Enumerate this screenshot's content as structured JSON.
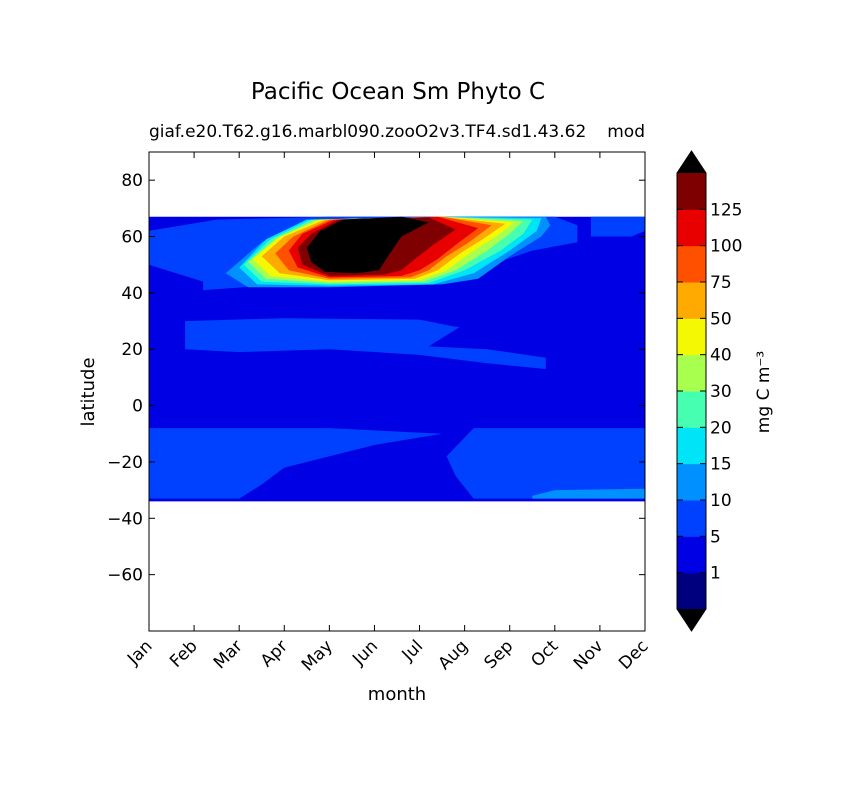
{
  "chart_data": {
    "type": "heatmap",
    "title": "Pacific Ocean Sm Phyto C",
    "subtitle_left": "giaf.e20.T62.g16.marbl090.zooO2v3.TF4.sd1.43.62",
    "subtitle_right": "mod",
    "xlabel": "month",
    "ylabel": "latitude",
    "x_ticks": [
      "Jan",
      "Feb",
      "Mar",
      "Apr",
      "May",
      "Jun",
      "Jul",
      "Aug",
      "Sep",
      "Oct",
      "Nov",
      "Dec"
    ],
    "y_ticks": [
      80,
      60,
      40,
      20,
      0,
      -20,
      -40,
      -60
    ],
    "y_tick_labels": [
      "80",
      "60",
      "40",
      "20",
      "0",
      "−20",
      "−40",
      "−60"
    ],
    "ylim": [
      -80,
      90
    ],
    "data_lat_range": [
      -34,
      67
    ],
    "colorbar": {
      "label": "mg C m⁻³",
      "tick_labels": [
        "1",
        "5",
        "10",
        "15",
        "20",
        "30",
        "40",
        "50",
        "75",
        "100",
        "125"
      ],
      "levels": [
        1,
        5,
        10,
        15,
        20,
        30,
        40,
        50,
        75,
        100,
        125
      ],
      "colors": [
        "#00007f",
        "#0000e5",
        "#0040ff",
        "#0090ff",
        "#00e4f8",
        "#46ffb0",
        "#a8ff4e",
        "#f4f802",
        "#ffaa00",
        "#ff5000",
        "#e80000",
        "#7f0000"
      ],
      "extend_low_color": "#000000",
      "extend_high_color": "#000000"
    },
    "regions": [
      {
        "desc": "background",
        "value": "1-5"
      },
      {
        "desc": "tropical band 12-32N",
        "value": "5-10"
      },
      {
        "desc": "southern subtropics -8 to -32",
        "value": "5-10"
      },
      {
        "desc": "north pacific spring bloom 42-67N, Apr-Sep",
        "value": "10->125"
      },
      {
        "desc": "southern edge Oct-Dec",
        "value": "10-15"
      }
    ]
  }
}
